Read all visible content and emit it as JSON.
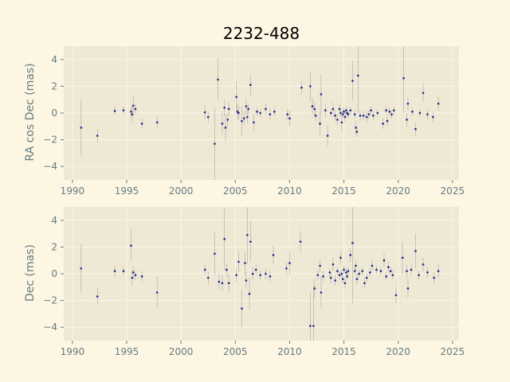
{
  "figure": {
    "title": "2232-488"
  },
  "chart_data": [
    {
      "type": "scatter",
      "title": "2232-488",
      "ylabel": "RA cos Dec (mas)",
      "xlabel": "",
      "xlim": [
        1989.2,
        2025.6
      ],
      "ylim": [
        -5,
        5
      ],
      "xticks": [
        1990,
        1995,
        2000,
        2005,
        2010,
        2015,
        2020,
        2025
      ],
      "yticks": [
        -4,
        -2,
        0,
        2,
        4
      ],
      "grid": true,
      "colors": {
        "point": "#1f2a8a",
        "errorbar": "#9a9a9a",
        "plot_bg": "#eee8d5",
        "grid": "#fdf6e3"
      },
      "points": [
        [
          1990.8,
          -1.1,
          2.1
        ],
        [
          1992.3,
          -1.7,
          0.5
        ],
        [
          1993.9,
          0.15,
          0.3
        ],
        [
          1994.7,
          0.2,
          0.3
        ],
        [
          1995.4,
          0.1,
          0.4
        ],
        [
          1995.5,
          -0.1,
          0.6
        ],
        [
          1995.6,
          0.55,
          0.8
        ],
        [
          1995.8,
          0.3,
          0.4
        ],
        [
          1996.4,
          -0.8,
          0.4
        ],
        [
          1997.8,
          -0.7,
          0.5
        ],
        [
          2002.2,
          0.05,
          0.5
        ],
        [
          2002.5,
          -0.3,
          0.4
        ],
        [
          2003.1,
          -2.3,
          2.7
        ],
        [
          2003.4,
          2.5,
          1.6
        ],
        [
          2003.8,
          -0.8,
          0.8
        ],
        [
          2004.0,
          0.4,
          0.6
        ],
        [
          2004.1,
          -1.1,
          1.0
        ],
        [
          2004.3,
          -0.5,
          0.5
        ],
        [
          2004.4,
          0.3,
          0.5
        ],
        [
          2005.1,
          1.2,
          1.2
        ],
        [
          2005.2,
          0.1,
          0.6
        ],
        [
          2005.3,
          0.0,
          0.5
        ],
        [
          2005.6,
          -0.6,
          1.1
        ],
        [
          2005.8,
          -0.4,
          0.5
        ],
        [
          2006.0,
          0.5,
          0.6
        ],
        [
          2006.1,
          -0.3,
          0.5
        ],
        [
          2006.2,
          0.3,
          0.4
        ],
        [
          2006.4,
          2.1,
          0.8
        ],
        [
          2006.7,
          -0.7,
          0.6
        ],
        [
          2007.0,
          0.1,
          0.3
        ],
        [
          2007.3,
          0.0,
          0.3
        ],
        [
          2007.8,
          0.3,
          0.4
        ],
        [
          2008.2,
          -0.1,
          0.4
        ],
        [
          2008.6,
          0.1,
          0.3
        ],
        [
          2009.8,
          -0.1,
          0.4
        ],
        [
          2010.0,
          -0.4,
          0.6
        ],
        [
          2011.1,
          1.9,
          0.5
        ],
        [
          2011.9,
          2.0,
          1.1
        ],
        [
          2012.1,
          0.5,
          0.6
        ],
        [
          2012.3,
          0.3,
          0.5
        ],
        [
          2012.4,
          -0.2,
          0.4
        ],
        [
          2012.8,
          -0.8,
          0.9
        ],
        [
          2012.9,
          1.4,
          1.5
        ],
        [
          2013.3,
          0.2,
          0.5
        ],
        [
          2013.5,
          -1.7,
          0.8
        ],
        [
          2013.8,
          0.0,
          0.3
        ],
        [
          2014.0,
          0.3,
          0.5
        ],
        [
          2014.2,
          -0.2,
          0.4
        ],
        [
          2014.4,
          -0.5,
          0.4
        ],
        [
          2014.6,
          0.3,
          0.4
        ],
        [
          2014.7,
          0.0,
          0.3
        ],
        [
          2014.8,
          -0.7,
          0.6
        ],
        [
          2014.9,
          -0.1,
          0.3
        ],
        [
          2015.0,
          0.1,
          0.3
        ],
        [
          2015.1,
          -0.3,
          0.4
        ],
        [
          2015.2,
          0.2,
          0.3
        ],
        [
          2015.3,
          0.0,
          0.3
        ],
        [
          2015.4,
          -0.1,
          0.3
        ],
        [
          2015.6,
          0.2,
          0.3
        ],
        [
          2015.8,
          2.4,
          1.5
        ],
        [
          2016.0,
          -0.1,
          0.3
        ],
        [
          2016.1,
          -1.1,
          0.5
        ],
        [
          2016.2,
          -1.4,
          0.4
        ],
        [
          2016.3,
          2.8,
          2.8
        ],
        [
          2016.5,
          -0.2,
          0.4
        ],
        [
          2016.8,
          -0.2,
          0.3
        ],
        [
          2017.1,
          -0.3,
          0.4
        ],
        [
          2017.3,
          -0.1,
          0.3
        ],
        [
          2017.5,
          0.2,
          0.3
        ],
        [
          2017.7,
          -0.2,
          0.3
        ],
        [
          2018.1,
          0.0,
          0.3
        ],
        [
          2018.6,
          -0.8,
          0.4
        ],
        [
          2018.9,
          0.2,
          0.3
        ],
        [
          2019.0,
          -0.6,
          0.4
        ],
        [
          2019.2,
          0.1,
          0.3
        ],
        [
          2019.4,
          -0.1,
          0.3
        ],
        [
          2019.6,
          0.2,
          0.3
        ],
        [
          2020.5,
          2.6,
          2.6
        ],
        [
          2020.8,
          -0.5,
          0.5
        ],
        [
          2020.9,
          0.7,
          0.5
        ],
        [
          2021.3,
          0.1,
          0.3
        ],
        [
          2021.6,
          -1.2,
          0.5
        ],
        [
          2022.0,
          0.0,
          0.3
        ],
        [
          2022.3,
          1.5,
          0.7
        ],
        [
          2022.7,
          -0.1,
          0.4
        ],
        [
          2023.2,
          -0.3,
          0.4
        ],
        [
          2023.7,
          0.7,
          0.5
        ]
      ]
    },
    {
      "type": "scatter",
      "ylabel": "Dec (mas)",
      "xlabel": "",
      "xlim": [
        1989.2,
        2025.6
      ],
      "ylim": [
        -5,
        5
      ],
      "xticks": [
        1990,
        1995,
        2000,
        2005,
        2010,
        2015,
        2020,
        2025
      ],
      "yticks": [
        -4,
        -2,
        0,
        2,
        4
      ],
      "grid": true,
      "colors": {
        "point": "#1f2a8a",
        "errorbar": "#9a9a9a",
        "plot_bg": "#eee8d5",
        "grid": "#fdf6e3"
      },
      "points": [
        [
          1990.8,
          0.4,
          1.8
        ],
        [
          1992.3,
          -1.7,
          0.6
        ],
        [
          1993.9,
          0.2,
          0.4
        ],
        [
          1994.7,
          0.2,
          0.3
        ],
        [
          1995.4,
          2.1,
          1.2
        ],
        [
          1995.5,
          -0.3,
          0.6
        ],
        [
          1995.6,
          0.1,
          0.5
        ],
        [
          1995.8,
          -0.1,
          0.4
        ],
        [
          1996.4,
          -0.2,
          0.4
        ],
        [
          1997.8,
          -1.4,
          1.2
        ],
        [
          2002.2,
          0.3,
          0.4
        ],
        [
          2002.5,
          -0.3,
          0.5
        ],
        [
          2003.1,
          1.5,
          1.6
        ],
        [
          2003.5,
          -0.6,
          0.6
        ],
        [
          2003.8,
          -0.7,
          0.6
        ],
        [
          2004.0,
          2.6,
          2.3
        ],
        [
          2004.2,
          0.3,
          0.5
        ],
        [
          2004.4,
          -0.7,
          0.7
        ],
        [
          2005.1,
          -0.1,
          0.5
        ],
        [
          2005.3,
          0.9,
          0.8
        ],
        [
          2005.6,
          -2.6,
          1.4
        ],
        [
          2005.9,
          0.8,
          0.9
        ],
        [
          2006.0,
          -0.5,
          0.6
        ],
        [
          2006.1,
          2.9,
          2.1
        ],
        [
          2006.3,
          -1.5,
          1.2
        ],
        [
          2006.4,
          2.4,
          1.5
        ],
        [
          2006.6,
          0.0,
          0.5
        ],
        [
          2006.9,
          0.3,
          0.4
        ],
        [
          2007.3,
          -0.1,
          0.4
        ],
        [
          2007.8,
          0.0,
          0.4
        ],
        [
          2008.2,
          -0.2,
          0.4
        ],
        [
          2008.5,
          1.4,
          0.7
        ],
        [
          2009.7,
          0.4,
          0.5
        ],
        [
          2010.0,
          0.8,
          0.9
        ],
        [
          2011.0,
          2.4,
          0.8
        ],
        [
          2011.9,
          -3.9,
          2.5
        ],
        [
          2012.2,
          -3.9,
          3.0
        ],
        [
          2012.3,
          -1.1,
          0.7
        ],
        [
          2012.6,
          -0.1,
          0.4
        ],
        [
          2012.8,
          0.6,
          0.5
        ],
        [
          2012.9,
          -1.4,
          1.2
        ],
        [
          2013.1,
          -0.2,
          0.4
        ],
        [
          2013.7,
          0.1,
          0.3
        ],
        [
          2013.8,
          -0.3,
          0.4
        ],
        [
          2014.0,
          0.7,
          0.5
        ],
        [
          2014.2,
          -0.5,
          0.4
        ],
        [
          2014.4,
          0.2,
          0.3
        ],
        [
          2014.6,
          -0.1,
          0.3
        ],
        [
          2014.7,
          1.2,
          0.5
        ],
        [
          2014.8,
          0.0,
          0.3
        ],
        [
          2014.9,
          -0.4,
          0.3
        ],
        [
          2015.0,
          0.3,
          0.3
        ],
        [
          2015.1,
          -0.7,
          0.4
        ],
        [
          2015.2,
          0.1,
          0.3
        ],
        [
          2015.3,
          -0.2,
          0.3
        ],
        [
          2015.4,
          0.2,
          0.3
        ],
        [
          2015.6,
          1.4,
          0.5
        ],
        [
          2015.8,
          2.3,
          4.5
        ],
        [
          2016.0,
          0.2,
          0.3
        ],
        [
          2016.1,
          0.6,
          0.4
        ],
        [
          2016.2,
          -0.4,
          0.4
        ],
        [
          2016.4,
          0.0,
          0.3
        ],
        [
          2016.7,
          0.2,
          0.3
        ],
        [
          2016.9,
          -0.7,
          0.4
        ],
        [
          2017.1,
          -0.3,
          0.3
        ],
        [
          2017.4,
          0.1,
          0.3
        ],
        [
          2017.6,
          0.6,
          0.4
        ],
        [
          2018.0,
          0.3,
          0.3
        ],
        [
          2018.4,
          0.2,
          0.3
        ],
        [
          2018.7,
          1.0,
          0.5
        ],
        [
          2018.9,
          -0.2,
          0.3
        ],
        [
          2019.1,
          0.5,
          0.4
        ],
        [
          2019.3,
          0.2,
          0.3
        ],
        [
          2019.5,
          -0.1,
          0.3
        ],
        [
          2019.8,
          -1.6,
          0.6
        ],
        [
          2020.4,
          1.2,
          1.2
        ],
        [
          2020.8,
          0.2,
          0.5
        ],
        [
          2020.9,
          -1.1,
          0.7
        ],
        [
          2021.2,
          0.3,
          0.4
        ],
        [
          2021.6,
          1.7,
          1.3
        ],
        [
          2021.9,
          -0.1,
          0.3
        ],
        [
          2022.3,
          0.7,
          0.5
        ],
        [
          2022.7,
          0.1,
          0.4
        ],
        [
          2023.3,
          -0.3,
          0.4
        ],
        [
          2023.7,
          0.2,
          0.5
        ]
      ]
    }
  ]
}
